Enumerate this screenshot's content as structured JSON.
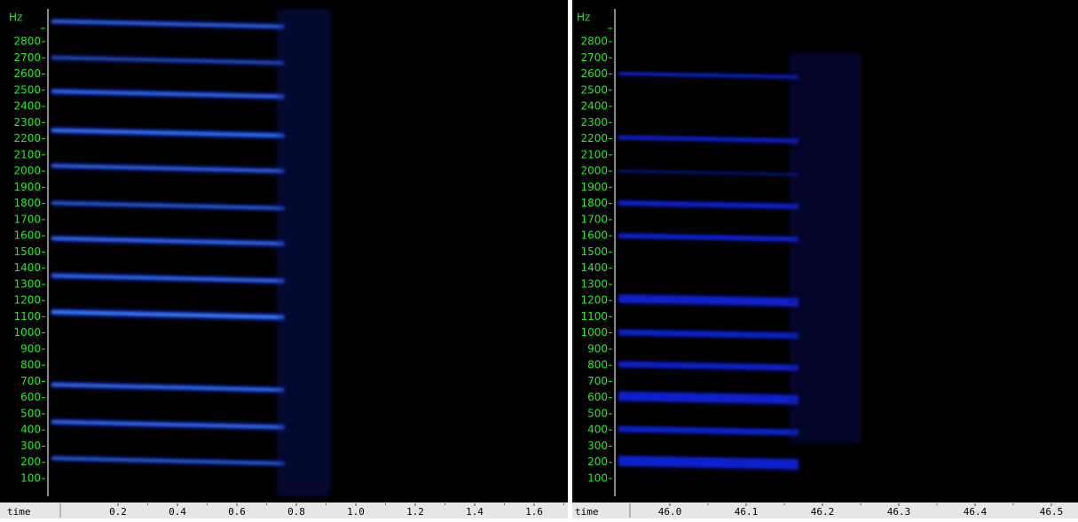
{
  "panels": [
    {
      "y_unit": "Hz",
      "y_labels": [
        "2800",
        "2700",
        "2600",
        "2500",
        "2400",
        "2300",
        "2200",
        "2100",
        "2000",
        "1900",
        "1800",
        "1700",
        "1600",
        "1500",
        "1400",
        "1300",
        "1200",
        "1100",
        "1000",
        "900",
        "800",
        "700",
        "600",
        "500",
        "400",
        "300",
        "200",
        "100"
      ],
      "x_title": "time",
      "x_labels": [
        "0.2",
        "0.4",
        "0.6",
        "0.8",
        "1.0",
        "1.2",
        "1.4",
        "1.6"
      ]
    },
    {
      "y_unit": "Hz",
      "y_labels": [
        "2800",
        "2700",
        "2600",
        "2500",
        "2400",
        "2300",
        "2200",
        "2100",
        "2000",
        "1900",
        "1800",
        "1700",
        "1600",
        "1500",
        "1400",
        "1300",
        "1200",
        "1100",
        "1000",
        "900",
        "800",
        "700",
        "600",
        "500",
        "400",
        "300",
        "200",
        "100"
      ],
      "x_title": "time",
      "x_labels": [
        "46.0",
        "46.1",
        "46.2",
        "46.3",
        "46.4",
        "46.5"
      ]
    }
  ]
}
